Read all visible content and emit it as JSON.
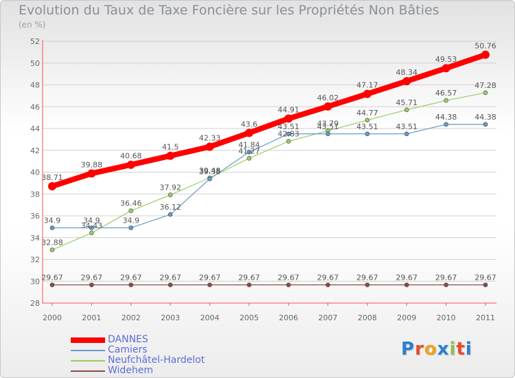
{
  "title": "Evolution du Taux de Taxe Foncière sur les Propriétés Non Bâties",
  "subtitle": "(en %)",
  "logo": "Proxiti",
  "colors": {
    "axis": "#ff4d4d",
    "grid": "#d0d0d0",
    "logo": [
      "#2a7fd4",
      "#e84b2a",
      "#f0a21c",
      "#2a7fd4",
      "#8bc34a",
      "#e84b2a",
      "#2a7fd4"
    ]
  },
  "chart_data": {
    "type": "line",
    "x": [
      "2000",
      "2001",
      "2002",
      "2003",
      "2004",
      "2005",
      "2006",
      "2007",
      "2008",
      "2009",
      "2010",
      "2011"
    ],
    "ylim": [
      28,
      52
    ],
    "yticks": [
      28,
      30,
      32,
      34,
      36,
      38,
      40,
      42,
      44,
      46,
      48,
      50,
      52
    ],
    "grid": "horizontal",
    "legend_position": "bottom-left",
    "series": [
      {
        "name": "DANNES",
        "color": "#ff0000",
        "values": [
          38.71,
          39.88,
          40.68,
          41.5,
          42.33,
          43.6,
          44.91,
          46.02,
          47.17,
          48.34,
          49.53,
          50.76
        ],
        "labels": [
          "38.71",
          "39.88",
          "40.68",
          "41.5",
          "42.33",
          "43.6",
          "44.91",
          "46.02",
          "47.17",
          "48.34",
          "49.53",
          "50.76"
        ]
      },
      {
        "name": "Camiers",
        "color": "#6699cc",
        "values": [
          34.9,
          34.9,
          34.9,
          36.12,
          39.38,
          41.84,
          43.51,
          43.51,
          43.51,
          43.51,
          44.38,
          44.38
        ],
        "labels": [
          "34.9",
          "34.9",
          "34.9",
          "36.12",
          "39.38",
          "41.84",
          "43.51",
          "43.51",
          "43.51",
          "43.51",
          "44.38",
          "44.38"
        ]
      },
      {
        "name": "Neufchâtel-Hardelot",
        "color": "#99cc66",
        "values": [
          32.88,
          34.43,
          36.46,
          37.92,
          39.48,
          41.27,
          42.83,
          43.79,
          44.77,
          45.71,
          46.57,
          47.28
        ],
        "labels": [
          "32.88",
          "34.43",
          "36.46",
          "37.92",
          "39.48",
          "41.27",
          "42.83",
          "43.79",
          "44.77",
          "45.71",
          "46.57",
          "47.28"
        ]
      },
      {
        "name": "Widehem",
        "color": "#8b4a4a",
        "values": [
          29.67,
          29.67,
          29.67,
          29.67,
          29.67,
          29.67,
          29.67,
          29.67,
          29.67,
          29.67,
          29.67,
          29.67
        ],
        "labels": [
          "29.67",
          "29.67",
          "29.67",
          "29.67",
          "29.67",
          "29.67",
          "29.67",
          "29.67",
          "29.67",
          "29.67",
          "29.67",
          "29.67"
        ]
      }
    ]
  }
}
